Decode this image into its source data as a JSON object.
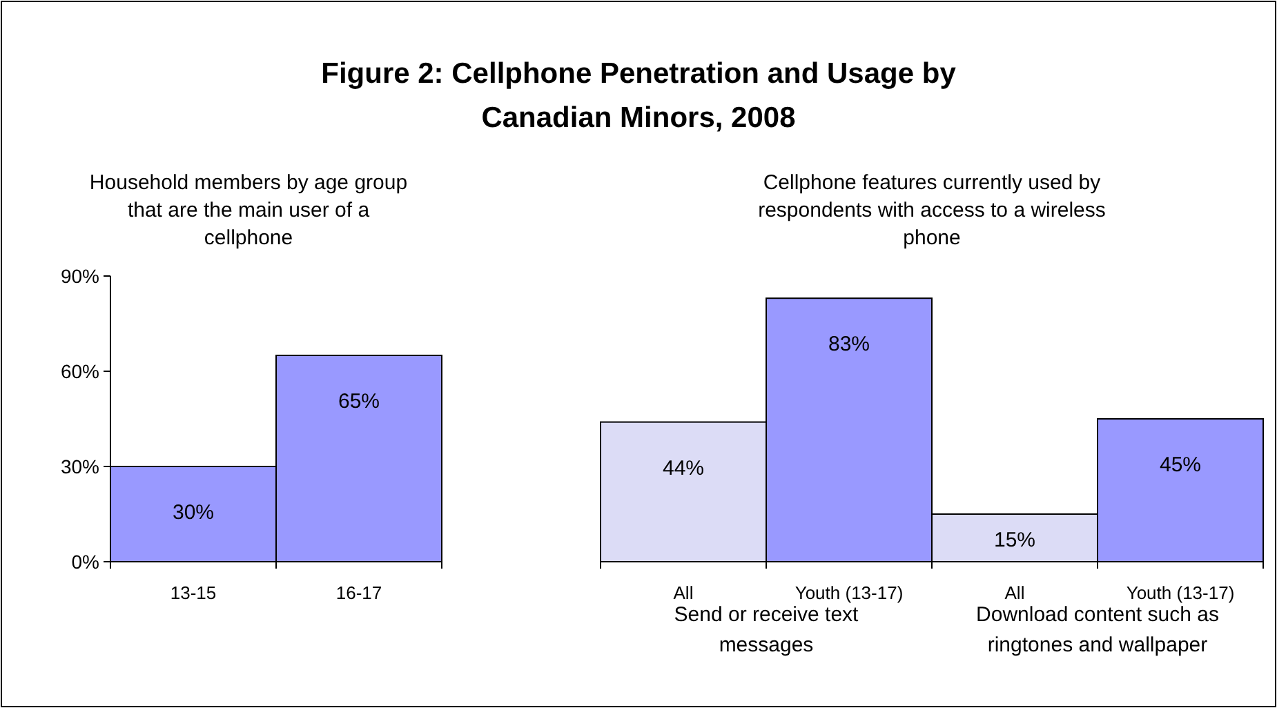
{
  "chart_data": [
    {
      "type": "bar",
      "title": "Figure 2: Cellphone Penetration and Usage by Canadian Minors, 2008",
      "subtitle": "Household members by age group that are the main user of a cellphone",
      "categories": [
        "13-15",
        "16-17"
      ],
      "values": [
        30,
        65
      ],
      "colors": [
        "#9999ff",
        "#9999ff"
      ],
      "ylim": [
        0,
        90
      ],
      "yticks": [
        {
          "value": 0,
          "label": "0%"
        },
        {
          "value": 30,
          "label": "30%"
        },
        {
          "value": 60,
          "label": "60%"
        },
        {
          "value": 90,
          "label": "90%"
        }
      ],
      "value_labels": [
        "30%",
        "65%"
      ]
    },
    {
      "type": "bar",
      "subtitle": "Cellphone features currently used by respondents with access to a wireless phone",
      "categories": [
        "All",
        "Youth (13-17)",
        "All",
        "Youth (13-17)"
      ],
      "values": [
        44,
        83,
        15,
        45
      ],
      "colors": [
        "#dcdcf6",
        "#9999ff",
        "#dcdcf6",
        "#9999ff"
      ],
      "ylim": [
        0,
        90
      ],
      "tick_labels": "x",
      "value_labels": [
        "44%",
        "83%",
        "15%",
        "45%"
      ],
      "annotations": [
        "Send or receive text messages",
        "Download content such as ringtones and wallpaper"
      ]
    }
  ]
}
